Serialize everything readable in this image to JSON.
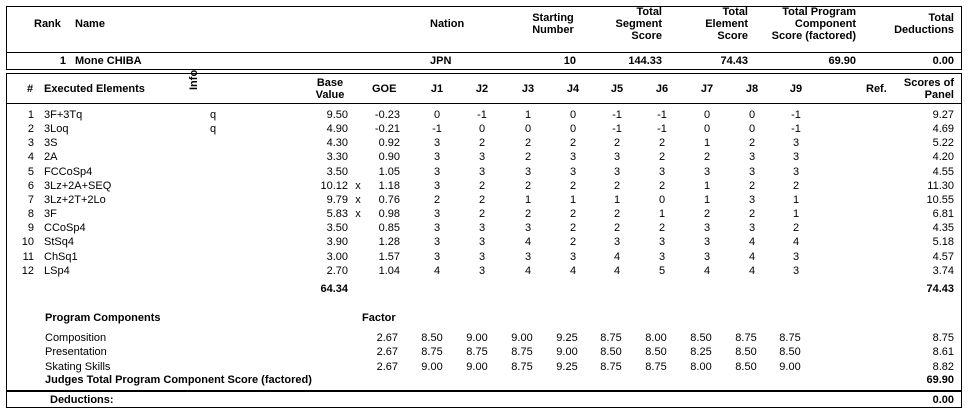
{
  "header": {
    "rank_label": "Rank",
    "name_label": "Name",
    "nation_label": "Nation",
    "starting_number_label": [
      "Starting",
      "Number"
    ],
    "total_segment_score_label": [
      "Total",
      "Segment",
      "Score"
    ],
    "total_element_score_label": [
      "Total",
      "Element",
      "Score"
    ],
    "total_pcs_label": [
      "Total Program",
      "Component",
      "Score (factored)"
    ],
    "total_deductions_label": [
      "Total",
      "Deductions"
    ]
  },
  "skater": {
    "rank": "1",
    "name": "Mone CHIBA",
    "nation": "JPN",
    "starting_number": "10",
    "total_segment_score": "144.33",
    "total_element_score": "74.43",
    "total_pcs": "69.90",
    "total_deductions": "0.00"
  },
  "elements_header": {
    "num": "#",
    "executed_elements": "Executed Elements",
    "info": "Info",
    "base_value": [
      "Base",
      "Value"
    ],
    "goe": "GOE",
    "judges": [
      "J1",
      "J2",
      "J3",
      "J4",
      "J5",
      "J6",
      "J7",
      "J8",
      "J9"
    ],
    "ref": "Ref.",
    "scores_of_panel": [
      "Scores of",
      "Panel"
    ]
  },
  "elements": [
    {
      "num": "1",
      "name": "3F+3Tq",
      "info": "q",
      "base": "9.50",
      "x": "",
      "goe": "-0.23",
      "j": [
        "0",
        "-1",
        "1",
        "0",
        "-1",
        "-1",
        "0",
        "0",
        "-1"
      ],
      "score": "9.27"
    },
    {
      "num": "2",
      "name": "3Loq",
      "info": "q",
      "base": "4.90",
      "x": "",
      "goe": "-0.21",
      "j": [
        "-1",
        "0",
        "0",
        "0",
        "-1",
        "-1",
        "0",
        "0",
        "-1"
      ],
      "score": "4.69"
    },
    {
      "num": "3",
      "name": "3S",
      "info": "",
      "base": "4.30",
      "x": "",
      "goe": "0.92",
      "j": [
        "3",
        "2",
        "2",
        "2",
        "2",
        "2",
        "1",
        "2",
        "3"
      ],
      "score": "5.22"
    },
    {
      "num": "4",
      "name": "2A",
      "info": "",
      "base": "3.30",
      "x": "",
      "goe": "0.90",
      "j": [
        "3",
        "3",
        "2",
        "3",
        "3",
        "2",
        "2",
        "3",
        "3"
      ],
      "score": "4.20"
    },
    {
      "num": "5",
      "name": "FCCoSp4",
      "info": "",
      "base": "3.50",
      "x": "",
      "goe": "1.05",
      "j": [
        "3",
        "3",
        "3",
        "3",
        "3",
        "3",
        "3",
        "3",
        "3"
      ],
      "score": "4.55"
    },
    {
      "num": "6",
      "name": "3Lz+2A+SEQ",
      "info": "",
      "base": "10.12",
      "x": "x",
      "goe": "1.18",
      "j": [
        "3",
        "2",
        "2",
        "2",
        "2",
        "2",
        "1",
        "2",
        "2"
      ],
      "score": "11.30"
    },
    {
      "num": "7",
      "name": "3Lz+2T+2Lo",
      "info": "",
      "base": "9.79",
      "x": "x",
      "goe": "0.76",
      "j": [
        "2",
        "2",
        "1",
        "1",
        "1",
        "0",
        "1",
        "3",
        "1"
      ],
      "score": "10.55"
    },
    {
      "num": "8",
      "name": "3F",
      "info": "",
      "base": "5.83",
      "x": "x",
      "goe": "0.98",
      "j": [
        "3",
        "2",
        "2",
        "2",
        "2",
        "1",
        "2",
        "2",
        "1"
      ],
      "score": "6.81"
    },
    {
      "num": "9",
      "name": "CCoSp4",
      "info": "",
      "base": "3.50",
      "x": "",
      "goe": "0.85",
      "j": [
        "3",
        "3",
        "3",
        "2",
        "2",
        "2",
        "3",
        "3",
        "2"
      ],
      "score": "4.35"
    },
    {
      "num": "10",
      "name": "StSq4",
      "info": "",
      "base": "3.90",
      "x": "",
      "goe": "1.28",
      "j": [
        "3",
        "3",
        "4",
        "2",
        "3",
        "3",
        "3",
        "4",
        "4"
      ],
      "score": "5.18"
    },
    {
      "num": "11",
      "name": "ChSq1",
      "info": "",
      "base": "3.00",
      "x": "",
      "goe": "1.57",
      "j": [
        "3",
        "3",
        "3",
        "3",
        "4",
        "3",
        "3",
        "4",
        "3"
      ],
      "score": "4.57"
    },
    {
      "num": "12",
      "name": "LSp4",
      "info": "",
      "base": "2.70",
      "x": "",
      "goe": "1.04",
      "j": [
        "4",
        "3",
        "4",
        "4",
        "4",
        "5",
        "4",
        "4",
        "3"
      ],
      "score": "3.74"
    }
  ],
  "elements_totals": {
    "base_total": "64.34",
    "score_total": "74.43"
  },
  "program_components": {
    "title": "Program Components",
    "factor_label": "Factor",
    "rows": [
      {
        "name": "Composition",
        "factor": "2.67",
        "j": [
          "8.50",
          "9.00",
          "9.00",
          "9.25",
          "8.75",
          "8.00",
          "8.50",
          "8.75",
          "8.75"
        ],
        "score": "8.75"
      },
      {
        "name": "Presentation",
        "factor": "2.67",
        "j": [
          "8.75",
          "8.75",
          "8.75",
          "9.00",
          "8.50",
          "8.50",
          "8.25",
          "8.50",
          "8.50"
        ],
        "score": "8.61"
      },
      {
        "name": "Skating Skills",
        "factor": "2.67",
        "j": [
          "9.00",
          "9.00",
          "8.75",
          "9.25",
          "8.75",
          "8.75",
          "8.00",
          "8.50",
          "9.00"
        ],
        "score": "8.82"
      }
    ],
    "total_label": "Judges Total Program Component Score (factored)",
    "total_value": "69.90"
  },
  "deductions": {
    "label": "Deductions:",
    "value": "0.00"
  }
}
